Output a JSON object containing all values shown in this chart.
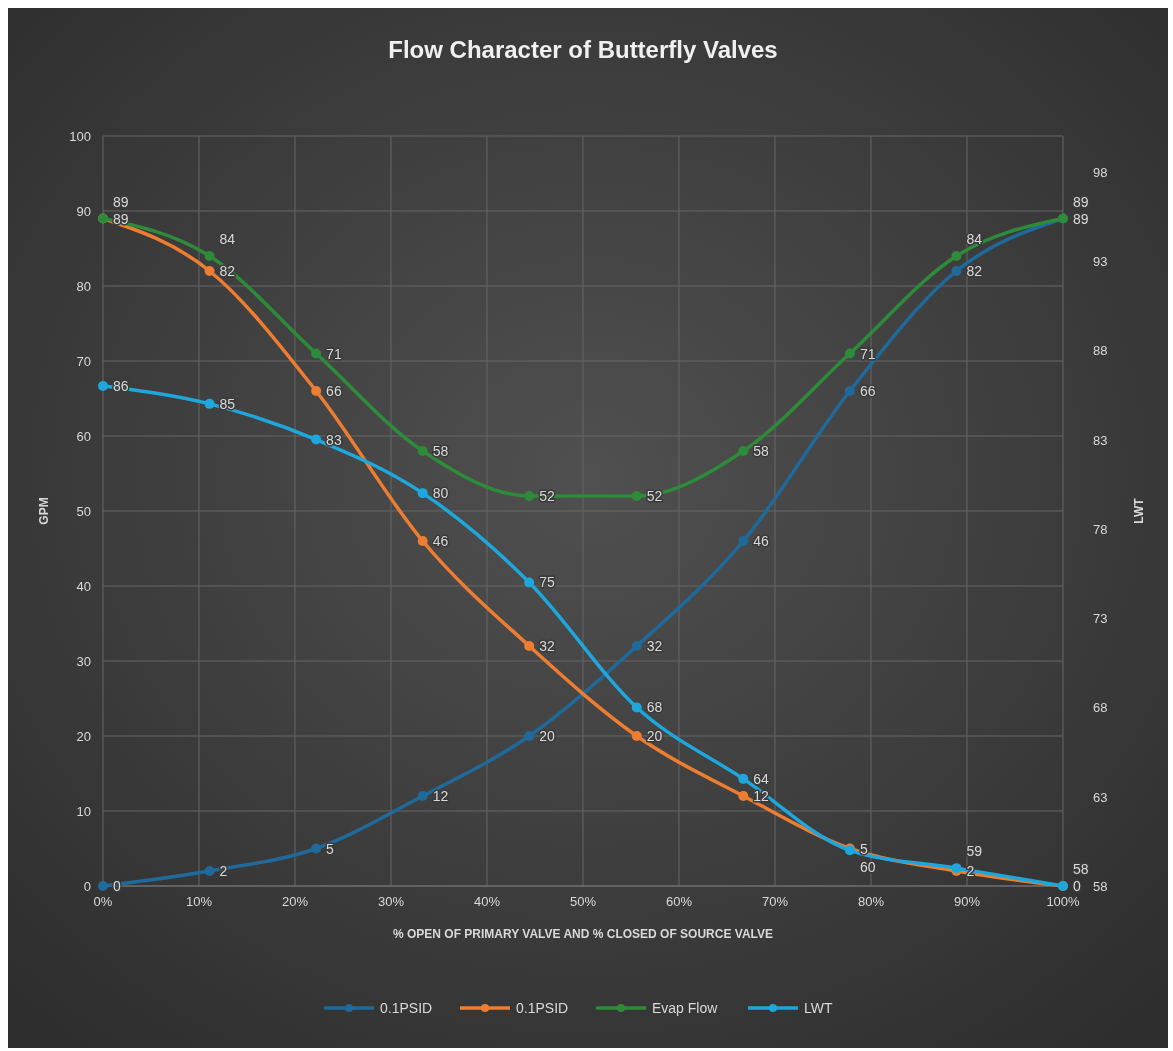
{
  "chart_data": {
    "type": "line",
    "title": "Flow Character of Butterfly Valves",
    "xlabel": "% OPEN OF PRIMARY VALVE AND % CLOSED OF SOURCE VALVE",
    "ylabel": "GPM",
    "y2label": "LWT",
    "x": [
      0,
      11.1,
      22.2,
      33.3,
      44.4,
      55.6,
      66.7,
      77.8,
      88.9,
      100
    ],
    "xlim": [
      0,
      100
    ],
    "xticks": [
      {
        "value": 0,
        "label": "0%"
      },
      {
        "value": 10,
        "label": "10%"
      },
      {
        "value": 20,
        "label": "20%"
      },
      {
        "value": 30,
        "label": "30%"
      },
      {
        "value": 40,
        "label": "40%"
      },
      {
        "value": 50,
        "label": "50%"
      },
      {
        "value": 60,
        "label": "60%"
      },
      {
        "value": 70,
        "label": "70%"
      },
      {
        "value": 80,
        "label": "80%"
      },
      {
        "value": 90,
        "label": "90%"
      },
      {
        "value": 100,
        "label": "100%"
      }
    ],
    "ylim": [
      0,
      100
    ],
    "yticks": [
      0,
      10,
      20,
      30,
      40,
      50,
      60,
      70,
      80,
      90,
      100
    ],
    "y2lim": [
      58,
      100
    ],
    "y2ticks": [
      58,
      63,
      68,
      73,
      78,
      83,
      88,
      93,
      98
    ],
    "series": [
      {
        "name": "0.1PSID",
        "color": "#1f6a9a",
        "values": [
          0,
          2,
          5,
          12,
          20,
          32,
          46,
          66,
          82,
          89
        ]
      },
      {
        "name": "0.1PSID",
        "color": "#ed7d31",
        "values": [
          89,
          82,
          66,
          46,
          32,
          20,
          12,
          5,
          2,
          0
        ]
      },
      {
        "name": "Evap Flow",
        "color": "#2e8b3a",
        "values": [
          89,
          84,
          71,
          58,
          52,
          52,
          58,
          71,
          84,
          89
        ]
      },
      {
        "name": "LWT",
        "color": "#1ea7dc",
        "axis": "y2",
        "values": [
          86,
          85,
          83,
          80,
          75,
          68,
          64,
          60,
          59,
          58
        ]
      }
    ],
    "grid": true,
    "legend": "bottom",
    "marker": "circle",
    "line_style": "solid",
    "data_labels": true
  }
}
